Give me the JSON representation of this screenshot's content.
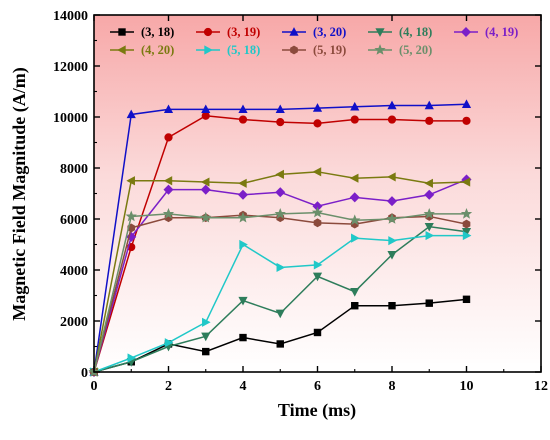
{
  "chart_data": {
    "type": "line",
    "xlabel": "Time (ms)",
    "ylabel": "Magnetic Field Magnitude (A/m)",
    "xlim": [
      0,
      12
    ],
    "ylim": [
      0,
      14000
    ],
    "x_ticks": [
      "0",
      "2",
      "4",
      "6",
      "8",
      "10",
      "12"
    ],
    "y_ticks": [
      "0",
      "2000",
      "4000",
      "6000",
      "8000",
      "10000",
      "12000",
      "14000"
    ],
    "x_tick_values": [
      0,
      2,
      4,
      6,
      8,
      10,
      12
    ],
    "y_tick_values": [
      0,
      2000,
      4000,
      6000,
      8000,
      10000,
      12000,
      14000
    ],
    "grid": false,
    "background": "gradient from red at top to white at bottom",
    "legend_position": "top",
    "x": [
      0,
      1,
      2,
      3,
      4,
      5,
      6,
      7,
      8,
      9,
      10
    ],
    "series": [
      {
        "name": "(3, 18)",
        "color": "#000000",
        "marker": "square",
        "values": [
          0,
          400,
          1100,
          800,
          1350,
          1100,
          1550,
          2600,
          2600,
          2700,
          2850
        ]
      },
      {
        "name": "(3, 19)",
        "color": "#c00000",
        "marker": "circle",
        "values": [
          0,
          4900,
          9200,
          10050,
          9900,
          9800,
          9750,
          9900,
          9900,
          9850,
          9850
        ]
      },
      {
        "name": "(3, 20)",
        "color": "#1010c8",
        "marker": "triangle-up",
        "values": [
          0,
          10100,
          10300,
          10300,
          10300,
          10300,
          10350,
          10400,
          10450,
          10450,
          10500
        ]
      },
      {
        "name": "(4, 18)",
        "color": "#2e7d5b",
        "marker": "triangle-down",
        "values": [
          0,
          400,
          1000,
          1400,
          2800,
          2300,
          3750,
          3150,
          4600,
          5700,
          5500
        ]
      },
      {
        "name": "(4, 19)",
        "color": "#7b1fc8",
        "marker": "diamond",
        "values": [
          0,
          5300,
          7150,
          7150,
          6950,
          7050,
          6500,
          6850,
          6700,
          6950,
          7550
        ]
      },
      {
        "name": "(4, 20)",
        "color": "#7a7a10",
        "marker": "triangle-left",
        "values": [
          0,
          7500,
          7500,
          7450,
          7400,
          7750,
          7850,
          7600,
          7650,
          7400,
          7450
        ]
      },
      {
        "name": "(5, 18)",
        "color": "#20c8c8",
        "marker": "triangle-right",
        "values": [
          0,
          550,
          1150,
          1950,
          5000,
          4100,
          4200,
          5250,
          5150,
          5350,
          5350
        ]
      },
      {
        "name": "(5, 19)",
        "color": "#8b4a3c",
        "marker": "hexagon",
        "values": [
          0,
          5650,
          6050,
          6050,
          6150,
          6050,
          5850,
          5800,
          6050,
          6100,
          5800
        ]
      },
      {
        "name": "(5, 20)",
        "color": "#6b8f6b",
        "marker": "star",
        "values": [
          0,
          6100,
          6200,
          6050,
          6050,
          6200,
          6250,
          5950,
          6000,
          6200,
          6200
        ]
      }
    ]
  }
}
